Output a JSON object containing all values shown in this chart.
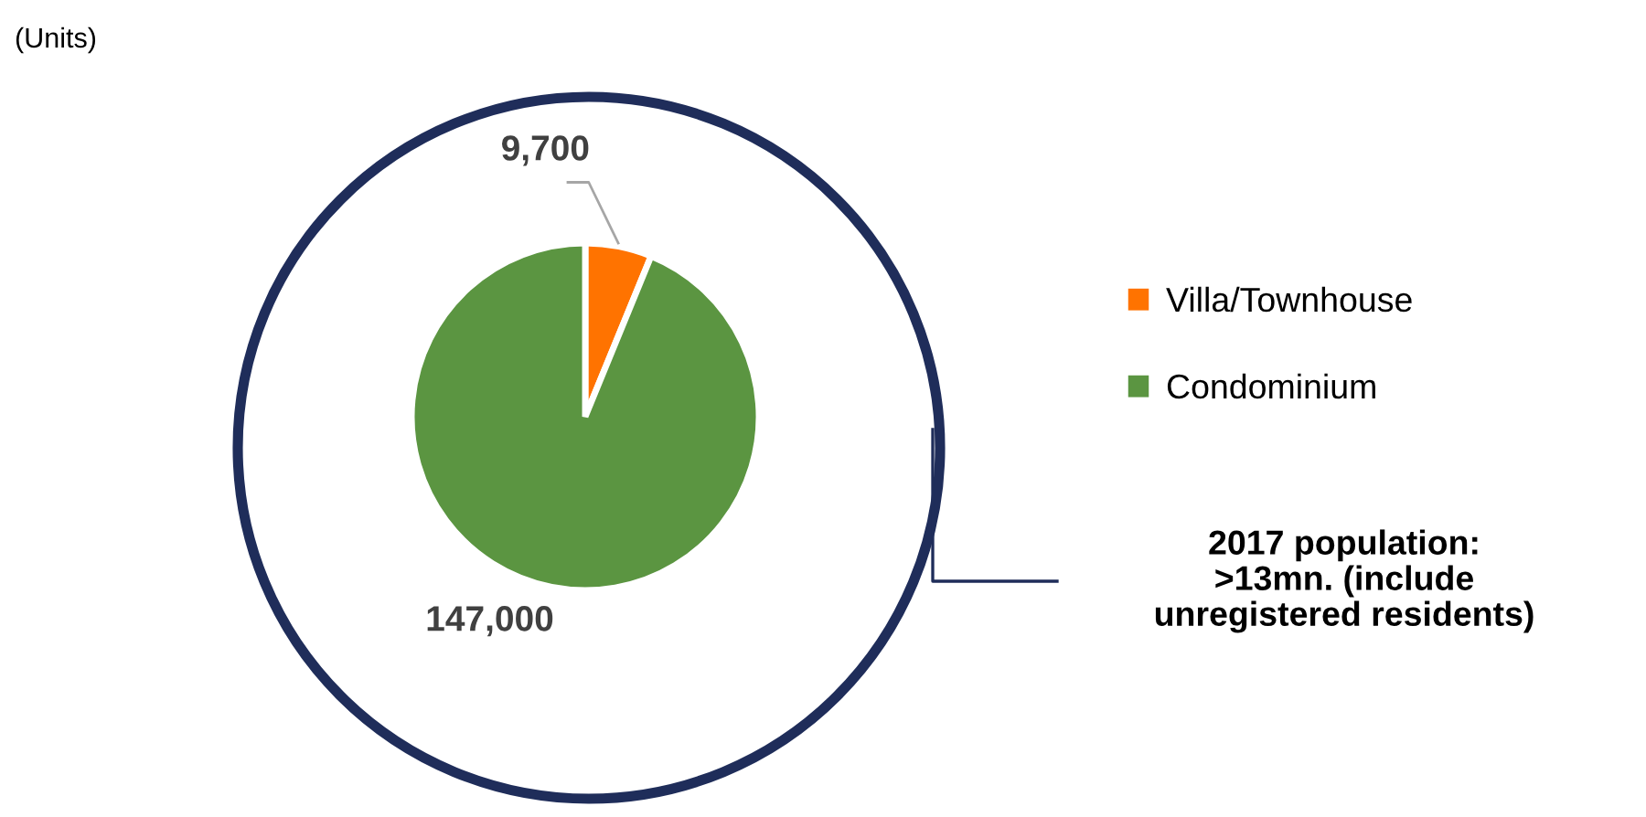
{
  "chart_data": {
    "type": "pie",
    "categories": [
      "Villa/Townhouse",
      "Condominium"
    ],
    "values": [
      9700,
      147000
    ],
    "colors": [
      "#ff7300",
      "#5b9541"
    ],
    "value_labels": [
      "9,700",
      "147,000"
    ],
    "legend": "right",
    "annotations": [
      "(Units)",
      "2017 population:\n>13mn. (include\nunregistered residents)"
    ]
  }
}
